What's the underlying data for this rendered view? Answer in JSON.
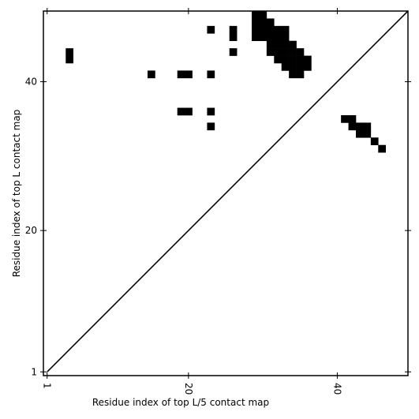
{
  "chart_data": {
    "type": "contact-map",
    "xlabel": "Residue index of top L/5 contact map",
    "ylabel": "Residue index of top L contact map",
    "xlim": [
      0.5,
      49.5
    ],
    "ylim": [
      0.5,
      49.5
    ],
    "xticks": [
      1,
      20,
      40
    ],
    "yticks": [
      1,
      20,
      40
    ],
    "color": "#000000",
    "diagonal": true,
    "contacts": [
      [
        4,
        44
      ],
      [
        4,
        43
      ],
      [
        15,
        41
      ],
      [
        19,
        41
      ],
      [
        20,
        41
      ],
      [
        23,
        41
      ],
      [
        23,
        47
      ],
      [
        23,
        36
      ],
      [
        23,
        34
      ],
      [
        19,
        36
      ],
      [
        20,
        36
      ],
      [
        26,
        47
      ],
      [
        26,
        46
      ],
      [
        26,
        44
      ],
      [
        29,
        49
      ],
      [
        29,
        48
      ],
      [
        29,
        47
      ],
      [
        29,
        46
      ],
      [
        30,
        49
      ],
      [
        30,
        48
      ],
      [
        30,
        47
      ],
      [
        30,
        46
      ],
      [
        31,
        48
      ],
      [
        31,
        47
      ],
      [
        31,
        46
      ],
      [
        31,
        45
      ],
      [
        31,
        44
      ],
      [
        32,
        47
      ],
      [
        32,
        46
      ],
      [
        32,
        45
      ],
      [
        32,
        44
      ],
      [
        32,
        43
      ],
      [
        33,
        47
      ],
      [
        33,
        46
      ],
      [
        33,
        45
      ],
      [
        33,
        44
      ],
      [
        33,
        43
      ],
      [
        33,
        42
      ],
      [
        34,
        45
      ],
      [
        34,
        44
      ],
      [
        34,
        43
      ],
      [
        34,
        42
      ],
      [
        34,
        41
      ],
      [
        35,
        44
      ],
      [
        35,
        43
      ],
      [
        35,
        42
      ],
      [
        35,
        41
      ],
      [
        36,
        43
      ],
      [
        36,
        42
      ],
      [
        41,
        35
      ],
      [
        42,
        35
      ],
      [
        42,
        34
      ],
      [
        43,
        34
      ],
      [
        44,
        34
      ],
      [
        43,
        33
      ],
      [
        44,
        33
      ],
      [
        45,
        32
      ],
      [
        46,
        31
      ]
    ]
  }
}
